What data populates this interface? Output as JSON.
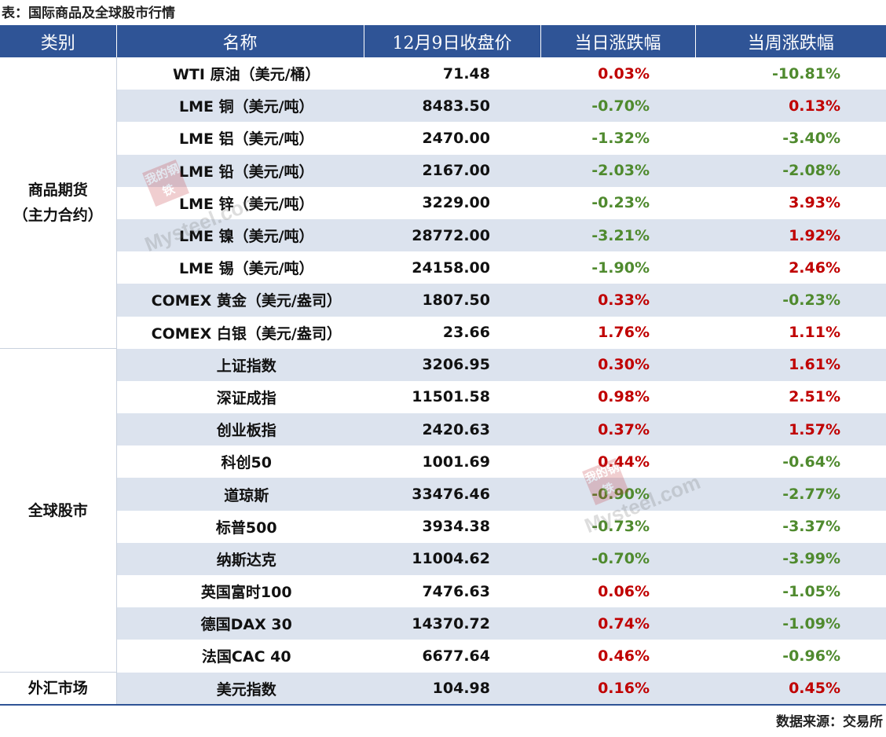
{
  "caption": "表：国际商品及全球股市行情",
  "source": "数据来源：交易所",
  "watermark": {
    "seal": "我的钢铁",
    "text": "Mysteel.com"
  },
  "colors": {
    "header_bg": "#2f5496",
    "band": "#dce3ee",
    "up": "#c00000",
    "down": "#4f8a2e"
  },
  "header": {
    "category": "类别",
    "name": "名称",
    "price": "12月9日收盘价",
    "day_change": "当日涨跌幅",
    "week_change": "当周涨跌幅"
  },
  "groups": [
    {
      "category_line1": "商品期货",
      "category_line2": "（主力合约）",
      "rows": [
        {
          "name": "WTI 原油（美元/桶）",
          "price": "71.48",
          "day": "0.03%",
          "week": "-10.81%"
        },
        {
          "name": "LME 铜（美元/吨）",
          "price": "8483.50",
          "day": "-0.70%",
          "week": "0.13%"
        },
        {
          "name": "LME 铝（美元/吨）",
          "price": "2470.00",
          "day": "-1.32%",
          "week": "-3.40%"
        },
        {
          "name": "LME 铅（美元/吨）",
          "price": "2167.00",
          "day": "-2.03%",
          "week": "-2.08%"
        },
        {
          "name": "LME 锌（美元/吨）",
          "price": "3229.00",
          "day": "-0.23%",
          "week": "3.93%"
        },
        {
          "name": "LME 镍（美元/吨）",
          "price": "28772.00",
          "day": "-3.21%",
          "week": "1.92%"
        },
        {
          "name": "LME 锡（美元/吨）",
          "price": "24158.00",
          "day": "-1.90%",
          "week": "2.46%"
        },
        {
          "name": "COMEX 黄金（美元/盎司）",
          "price": "1807.50",
          "day": "0.33%",
          "week": "-0.23%"
        },
        {
          "name": "COMEX 白银（美元/盎司）",
          "price": "23.66",
          "day": "1.76%",
          "week": "1.11%"
        }
      ]
    },
    {
      "category_line1": "全球股市",
      "category_line2": "",
      "rows": [
        {
          "name": "上证指数",
          "price": "3206.95",
          "day": "0.30%",
          "week": "1.61%"
        },
        {
          "name": "深证成指",
          "price": "11501.58",
          "day": "0.98%",
          "week": "2.51%"
        },
        {
          "name": "创业板指",
          "price": "2420.63",
          "day": "0.37%",
          "week": "1.57%"
        },
        {
          "name": "科创50",
          "price": "1001.69",
          "day": "0.44%",
          "week": "-0.64%"
        },
        {
          "name": "道琼斯",
          "price": "33476.46",
          "day": "-0.90%",
          "week": "-2.77%"
        },
        {
          "name": "标普500",
          "price": "3934.38",
          "day": "-0.73%",
          "week": "-3.37%"
        },
        {
          "name": "纳斯达克",
          "price": "11004.62",
          "day": "-0.70%",
          "week": "-3.99%"
        },
        {
          "name": "英国富时100",
          "price": "7476.63",
          "day": "0.06%",
          "week": "-1.05%"
        },
        {
          "name": "德国DAX 30",
          "price": "14370.72",
          "day": "0.74%",
          "week": "-1.09%"
        },
        {
          "name": "法国CAC 40",
          "price": "6677.64",
          "day": "0.46%",
          "week": "-0.96%"
        }
      ]
    },
    {
      "category_line1": "外汇市场",
      "category_line2": "",
      "rows": [
        {
          "name": "美元指数",
          "price": "104.98",
          "day": "0.16%",
          "week": "0.45%"
        }
      ]
    }
  ]
}
